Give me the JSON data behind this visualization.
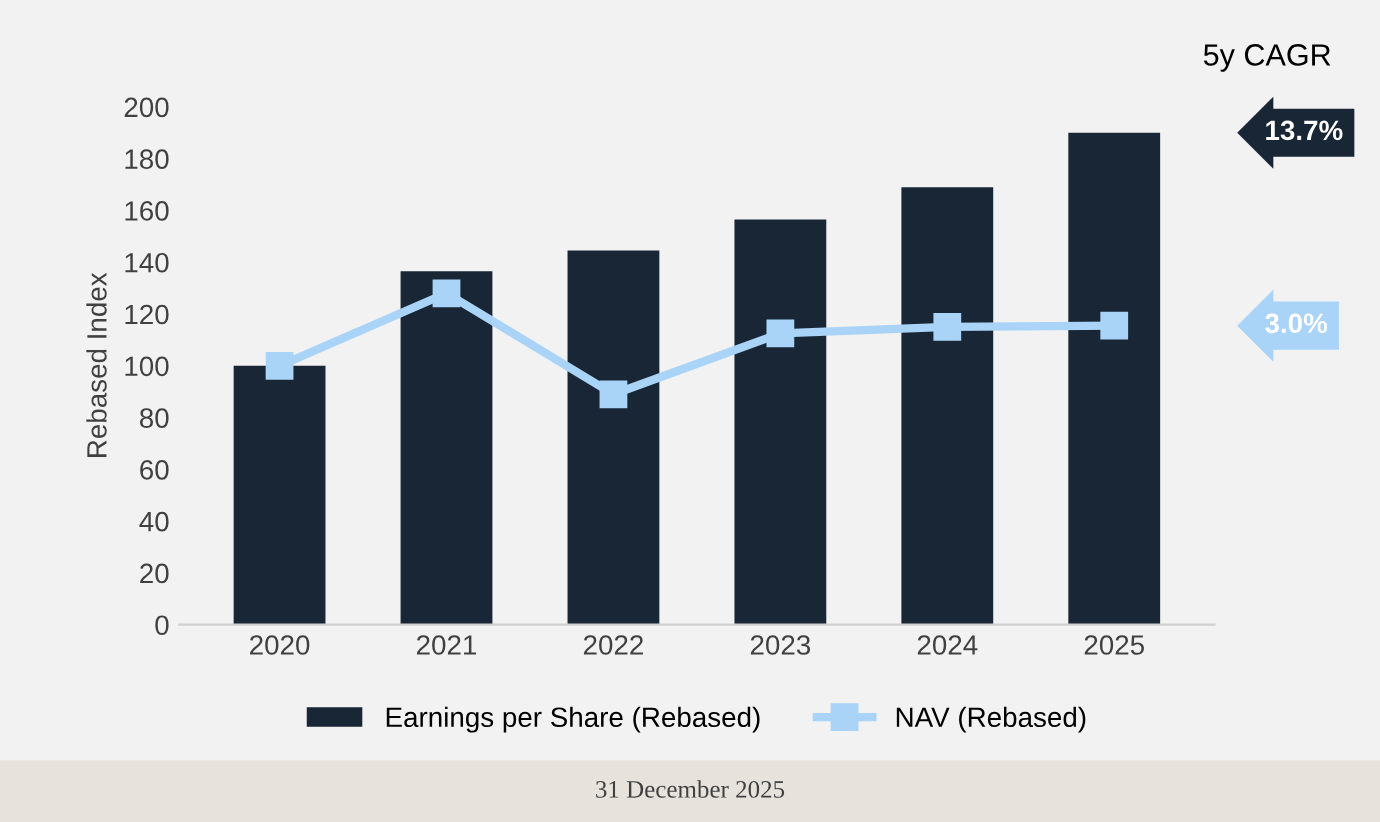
{
  "chart_data": {
    "type": "bar",
    "ylabel": "Rebased Index",
    "categories": [
      "2020",
      "2021",
      "2022",
      "2023",
      "2024",
      "2025"
    ],
    "series": [
      {
        "name": "Earnings per Share (Rebased)",
        "color": "#182635",
        "values": [
          100,
          136.5,
          144.5,
          156.5,
          169,
          190
        ]
      },
      {
        "name": "NAV (Rebased)",
        "type": "line",
        "color": "#a9d3f7",
        "marker": "square",
        "values": [
          100,
          128,
          89,
          112.5,
          115,
          115.5
        ]
      }
    ],
    "ylim": [
      0,
      200
    ],
    "yticks": [
      0,
      20,
      40,
      60,
      80,
      100,
      120,
      140,
      160,
      180,
      200
    ],
    "grid": false,
    "legend": "bottom",
    "annotations": [
      "5y CAGR",
      "13.7%",
      "3.0%",
      "31 December 2025"
    ]
  }
}
